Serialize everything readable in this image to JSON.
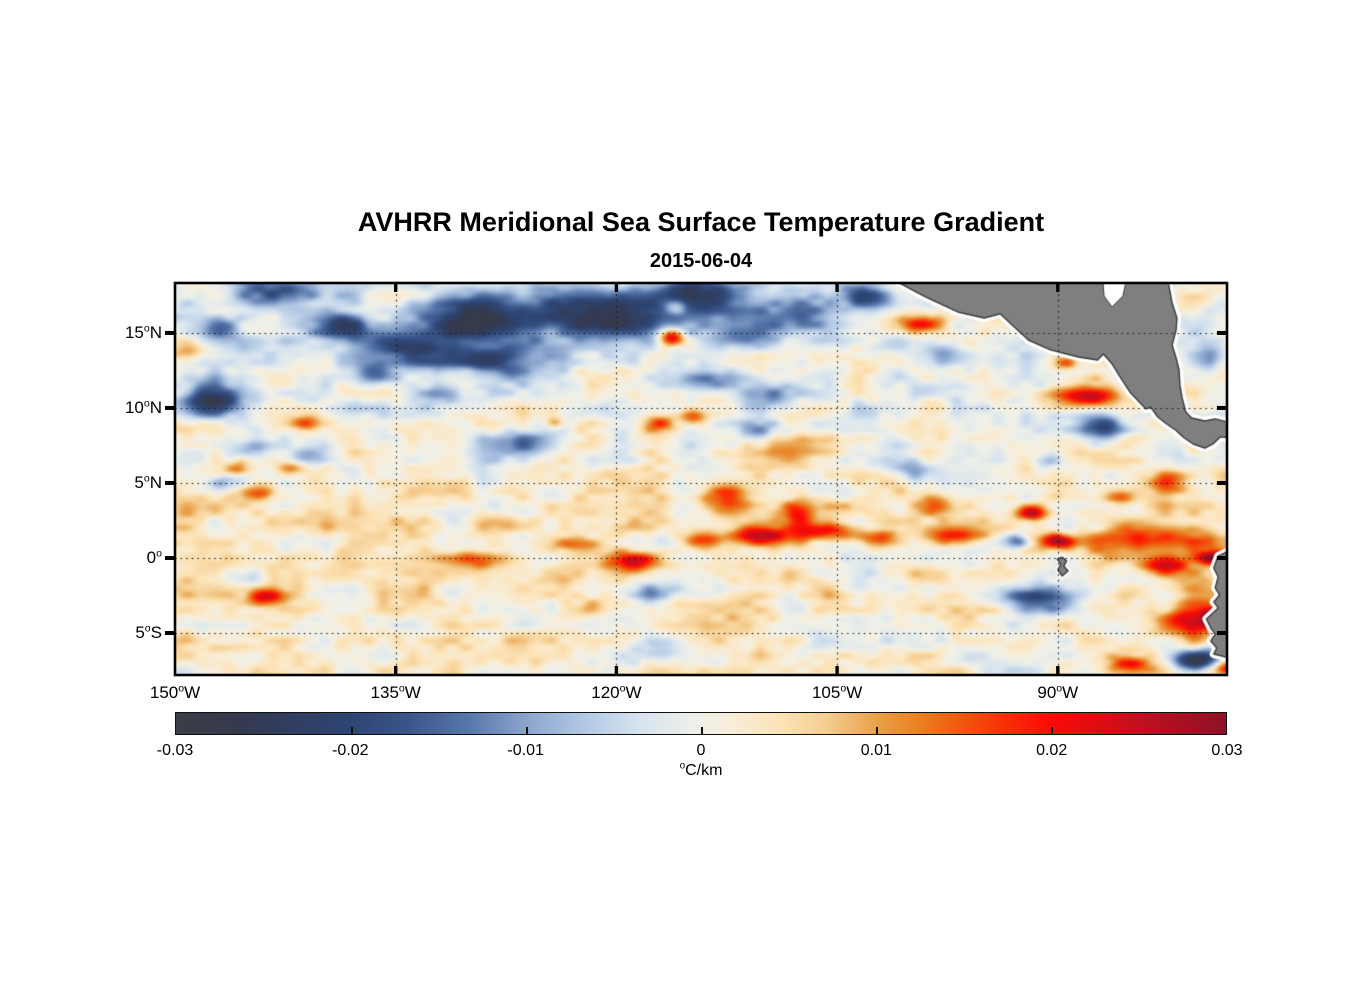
{
  "header": {
    "title": "AVHRR Meridional Sea Surface Temperature Gradient",
    "date": "2015-06-04"
  },
  "chart_data": {
    "type": "heatmap",
    "title": "AVHRR Meridional Sea Surface Temperature Gradient",
    "date": "2015-06-04",
    "value_units": "°C/km",
    "lon_range": [
      -150,
      -78.5
    ],
    "lat_range": [
      -7.8,
      18.33
    ],
    "grid": {
      "style": "dotted",
      "color": "#1a1a1a"
    },
    "x_ticks": [
      {
        "lon": -150,
        "num": "150",
        "sup": "o",
        "suffix": "W"
      },
      {
        "lon": -135,
        "num": "135",
        "sup": "o",
        "suffix": "W"
      },
      {
        "lon": -120,
        "num": "120",
        "sup": "o",
        "suffix": "W"
      },
      {
        "lon": -105,
        "num": "105",
        "sup": "o",
        "suffix": "W"
      },
      {
        "lon": -90,
        "num": "90",
        "sup": "o",
        "suffix": "W"
      }
    ],
    "y_ticks": [
      {
        "lat": 15,
        "num": "15",
        "sup": "o",
        "suffix": "N"
      },
      {
        "lat": 10,
        "num": "10",
        "sup": "o",
        "suffix": "N"
      },
      {
        "lat": 5,
        "num": "5",
        "sup": "o",
        "suffix": "N"
      },
      {
        "lat": 0,
        "num": "0",
        "sup": "o",
        "suffix": ""
      },
      {
        "lat": -5,
        "num": "5",
        "sup": "o",
        "suffix": "S"
      }
    ],
    "colorbar": {
      "min": -0.03,
      "max": 0.03,
      "tick_labels": [
        "-0.03",
        "-0.02",
        "-0.01",
        "0",
        "0.01",
        "0.02",
        "0.03"
      ],
      "unit_sup": "o",
      "unit_text": "C/km"
    },
    "colormap_stops": [
      [
        0.0,
        "#3b3e44"
      ],
      [
        0.06,
        "#34394e"
      ],
      [
        0.12,
        "#303f63"
      ],
      [
        0.167,
        "#2e4573"
      ],
      [
        0.22,
        "#3a5589"
      ],
      [
        0.28,
        "#5878ab"
      ],
      [
        0.333,
        "#8aa4cc"
      ],
      [
        0.39,
        "#b3c9e4"
      ],
      [
        0.44,
        "#d5e2ef"
      ],
      [
        0.475,
        "#e6ecea"
      ],
      [
        0.5,
        "#f0f0e9"
      ],
      [
        0.53,
        "#f8edd8"
      ],
      [
        0.575,
        "#fce3b7"
      ],
      [
        0.62,
        "#f5cd90"
      ],
      [
        0.667,
        "#e9a04a"
      ],
      [
        0.71,
        "#ea7e20"
      ],
      [
        0.75,
        "#f1560e"
      ],
      [
        0.79,
        "#f92e06"
      ],
      [
        0.833,
        "#fb0b05"
      ],
      [
        0.875,
        "#e10c11"
      ],
      [
        0.92,
        "#c01020"
      ],
      [
        1.0,
        "#8d1127"
      ]
    ],
    "land_color": "#7f7f7f",
    "land_outline_color": "#3b3b3b",
    "nodata_color": "#ffffff",
    "base_lat_curve": [
      [
        18.33,
        -0.001
      ],
      [
        14,
        0.0
      ],
      [
        10,
        0.0005
      ],
      [
        7,
        0.001
      ],
      [
        5,
        0.0025
      ],
      [
        3.5,
        0.0035
      ],
      [
        2,
        0.003
      ],
      [
        0.5,
        0.002
      ],
      [
        -1,
        0.003
      ],
      [
        -3,
        0.0035
      ],
      [
        -5,
        0.0025
      ],
      [
        -7.8,
        0.0015
      ]
    ],
    "noise": {
      "seed": 7,
      "octaves": [
        [
          2.3,
          1.1,
          0.005
        ],
        [
          0.95,
          0.5,
          0.003
        ]
      ]
    },
    "features": [
      [
        -142.5,
        17.8,
        -0.016,
        2.0,
        0.7
      ],
      [
        -139.0,
        15.4,
        -0.02,
        1.7,
        0.8
      ],
      [
        -133.9,
        14.0,
        -0.022,
        2.4,
        0.9
      ],
      [
        -136.5,
        12.4,
        -0.014,
        1.0,
        0.7
      ],
      [
        -129.5,
        16.0,
        -0.026,
        2.7,
        1.1
      ],
      [
        -128.0,
        13.2,
        -0.018,
        2.1,
        0.8
      ],
      [
        -121.3,
        16.2,
        -0.027,
        3.1,
        1.2
      ],
      [
        -114.8,
        17.5,
        -0.022,
        2.4,
        0.9
      ],
      [
        -111.0,
        15.2,
        -0.018,
        2.1,
        0.8
      ],
      [
        -107.2,
        16.5,
        -0.015,
        1.7,
        0.8
      ],
      [
        -102.8,
        17.4,
        -0.018,
        1.4,
        0.7
      ],
      [
        -146.6,
        15.3,
        -0.012,
        1.2,
        0.6
      ],
      [
        -147.6,
        10.5,
        -0.024,
        1.7,
        0.8
      ],
      [
        -144.7,
        7.4,
        -0.012,
        1.0,
        0.5
      ],
      [
        -140.8,
        6.8,
        -0.01,
        1.0,
        0.5
      ],
      [
        -132.1,
        10.8,
        -0.01,
        1.0,
        0.5
      ],
      [
        -126.4,
        7.5,
        -0.013,
        1.7,
        0.7
      ],
      [
        -114.1,
        11.8,
        -0.013,
        1.7,
        0.7
      ],
      [
        -110.0,
        10.8,
        -0.011,
        1.4,
        0.7
      ],
      [
        -97.6,
        13.7,
        -0.01,
        1.0,
        0.5
      ],
      [
        -87.0,
        8.7,
        -0.021,
        1.1,
        0.6
      ],
      [
        -91.5,
        -2.8,
        -0.022,
        1.9,
        0.7
      ],
      [
        -80.5,
        -6.8,
        -0.026,
        1.2,
        0.5
      ],
      [
        -117.5,
        -2.3,
        -0.014,
        1.2,
        0.5
      ],
      [
        -116.8,
        -6.1,
        -0.011,
        1.4,
        0.6
      ],
      [
        -145.0,
        -1.3,
        -0.01,
        1.0,
        0.5
      ],
      [
        -146.6,
        5.0,
        -0.013,
        0.8,
        0.4
      ],
      [
        -82.3,
        -3.1,
        -0.009,
        1.1,
        0.5
      ],
      [
        -103.1,
        -1.1,
        -0.008,
        1.2,
        0.6
      ],
      [
        -100.0,
        5.9,
        -0.01,
        1.1,
        0.5
      ],
      [
        -110.3,
        8.5,
        -0.012,
        1.0,
        0.5
      ],
      [
        -89.4,
        -0.3,
        -0.008,
        1.0,
        0.5
      ],
      [
        -92.8,
        1.1,
        -0.018,
        0.6,
        0.35
      ],
      [
        -90.5,
        6.4,
        -0.01,
        0.7,
        0.45
      ],
      [
        -79.3,
        13.5,
        -0.01,
        0.8,
        0.6
      ],
      [
        -116.3,
        14.7,
        0.026,
        0.6,
        0.4
      ],
      [
        -116.0,
        16.8,
        0.013,
        0.6,
        0.35
      ],
      [
        -99.3,
        15.7,
        0.018,
        1.1,
        0.45
      ],
      [
        -89.6,
        13.0,
        0.015,
        0.7,
        0.35
      ],
      [
        -88.1,
        10.8,
        0.027,
        1.9,
        0.5
      ],
      [
        -117.1,
        9.0,
        0.014,
        0.8,
        0.4
      ],
      [
        -114.7,
        9.4,
        0.013,
        0.7,
        0.35
      ],
      [
        -141.3,
        9.0,
        0.012,
        0.6,
        0.35
      ],
      [
        -145.8,
        5.9,
        0.015,
        0.7,
        0.35
      ],
      [
        -142.1,
        6.0,
        0.013,
        0.75,
        0.35
      ],
      [
        -144.2,
        4.3,
        0.012,
        0.7,
        0.35
      ],
      [
        -143.8,
        -2.6,
        0.017,
        0.9,
        0.4
      ],
      [
        -129.5,
        -0.1,
        0.013,
        1.7,
        0.45
      ],
      [
        -122.6,
        0.9,
        0.015,
        1.5,
        0.45
      ],
      [
        -118.8,
        -0.3,
        0.02,
        1.1,
        0.45
      ],
      [
        -114.1,
        1.2,
        0.021,
        1.0,
        0.45
      ],
      [
        -110.3,
        1.5,
        0.021,
        1.4,
        0.45
      ],
      [
        -105.9,
        1.7,
        0.018,
        1.4,
        0.45
      ],
      [
        -102.4,
        1.3,
        0.015,
        1.0,
        0.4
      ],
      [
        -97.0,
        1.5,
        0.016,
        1.5,
        0.45
      ],
      [
        -91.8,
        3.0,
        0.028,
        0.75,
        0.35
      ],
      [
        -90.0,
        1.1,
        0.03,
        0.8,
        0.35
      ],
      [
        -83.3,
        1.2,
        0.018,
        3.1,
        0.6
      ],
      [
        -82.6,
        -0.5,
        0.02,
        1.1,
        0.45
      ],
      [
        -79.5,
        0.0,
        0.026,
        0.7,
        0.35
      ],
      [
        -81.2,
        -3.8,
        0.02,
        1.4,
        1.05
      ],
      [
        -79.4,
        -4.0,
        0.026,
        0.55,
        0.4
      ],
      [
        -85.3,
        -7.1,
        0.016,
        1.1,
        0.45
      ],
      [
        -78.5,
        -7.3,
        0.024,
        0.7,
        0.4
      ],
      [
        -107.6,
        2.9,
        0.016,
        0.75,
        0.65
      ],
      [
        -124.1,
        9.0,
        0.012,
        0.5,
        0.3
      ],
      [
        -149.0,
        13.8,
        0.01,
        1.0,
        0.4
      ],
      [
        -82.6,
        5.2,
        0.015,
        1.1,
        0.55
      ],
      [
        -85.7,
        4.1,
        0.013,
        0.8,
        0.4
      ],
      [
        -112.5,
        3.8,
        0.013,
        1.3,
        0.7
      ],
      [
        -98.3,
        3.5,
        0.012,
        0.8,
        0.5
      ],
      [
        -108.0,
        7.5,
        0.009,
        2.0,
        0.5
      ],
      [
        -80.8,
        16.9,
        0.008,
        0.8,
        0.5
      ]
    ],
    "land": [
      {
        "name": "central-america",
        "fringe": 8,
        "pts": [
          [
            -100.9,
            18.4
          ],
          [
            -99.0,
            17.4
          ],
          [
            -96.8,
            16.4
          ],
          [
            -95.0,
            16.0
          ],
          [
            -93.9,
            16.27
          ],
          [
            -93.1,
            15.53
          ],
          [
            -92.0,
            14.53
          ],
          [
            -90.5,
            13.87
          ],
          [
            -88.6,
            13.4
          ],
          [
            -87.3,
            13.2
          ],
          [
            -86.9,
            13.6
          ],
          [
            -86.3,
            12.93
          ],
          [
            -85.8,
            12.13
          ],
          [
            -85.1,
            11.07
          ],
          [
            -84.4,
            10.33
          ],
          [
            -84.0,
            9.93
          ],
          [
            -83.7,
            10.07
          ],
          [
            -83.2,
            9.4
          ],
          [
            -82.6,
            8.93
          ],
          [
            -82.0,
            8.53
          ],
          [
            -81.4,
            8.0
          ],
          [
            -80.8,
            7.6
          ],
          [
            -80.0,
            7.33
          ],
          [
            -79.45,
            7.6
          ],
          [
            -78.97,
            8.07
          ],
          [
            -78.2,
            8.0
          ],
          [
            -78.2,
            9.0
          ],
          [
            -79.3,
            9.27
          ],
          [
            -80.0,
            9.13
          ],
          [
            -80.9,
            9.33
          ],
          [
            -81.3,
            9.73
          ],
          [
            -81.55,
            10.67
          ],
          [
            -81.7,
            11.53
          ],
          [
            -81.76,
            12.53
          ],
          [
            -81.96,
            13.33
          ],
          [
            -82.23,
            14.2
          ],
          [
            -81.96,
            15.2
          ],
          [
            -81.9,
            16.0
          ],
          [
            -82.23,
            17.0
          ],
          [
            -82.5,
            18.4
          ]
        ]
      },
      {
        "name": "south-america",
        "fringe": 8,
        "pts": [
          [
            -78.3,
            0.5
          ],
          [
            -79.1,
            0.13
          ],
          [
            -79.4,
            -0.67
          ],
          [
            -79.1,
            -1.27
          ],
          [
            -79.3,
            -2.0
          ],
          [
            -79.0,
            -2.47
          ],
          [
            -79.4,
            -2.93
          ],
          [
            -79.1,
            -3.33
          ],
          [
            -79.6,
            -3.8
          ],
          [
            -79.9,
            -4.07
          ],
          [
            -79.6,
            -4.67
          ],
          [
            -79.3,
            -5.07
          ],
          [
            -79.6,
            -5.53
          ],
          [
            -79.2,
            -6.0
          ],
          [
            -79.4,
            -6.4
          ],
          [
            -78.3,
            -6.67
          ]
        ]
      },
      {
        "name": "galapagos-islands",
        "fringe": 5,
        "pts": [
          [
            -89.7,
            0.06
          ],
          [
            -89.4,
            -0.21
          ],
          [
            -89.6,
            -0.54
          ],
          [
            -89.3,
            -0.87
          ],
          [
            -89.7,
            -1.2
          ],
          [
            -90.0,
            -0.8
          ],
          [
            -89.8,
            -0.4
          ],
          [
            -90.05,
            -0.07
          ]
        ]
      }
    ],
    "nodata_patches": [
      {
        "name": "caribbean-cloud-gap",
        "pts": [
          [
            -86.93,
            18.4
          ],
          [
            -85.37,
            18.4
          ],
          [
            -85.57,
            17.47
          ],
          [
            -86.32,
            16.73
          ],
          [
            -86.86,
            17.47
          ]
        ]
      }
    ]
  }
}
